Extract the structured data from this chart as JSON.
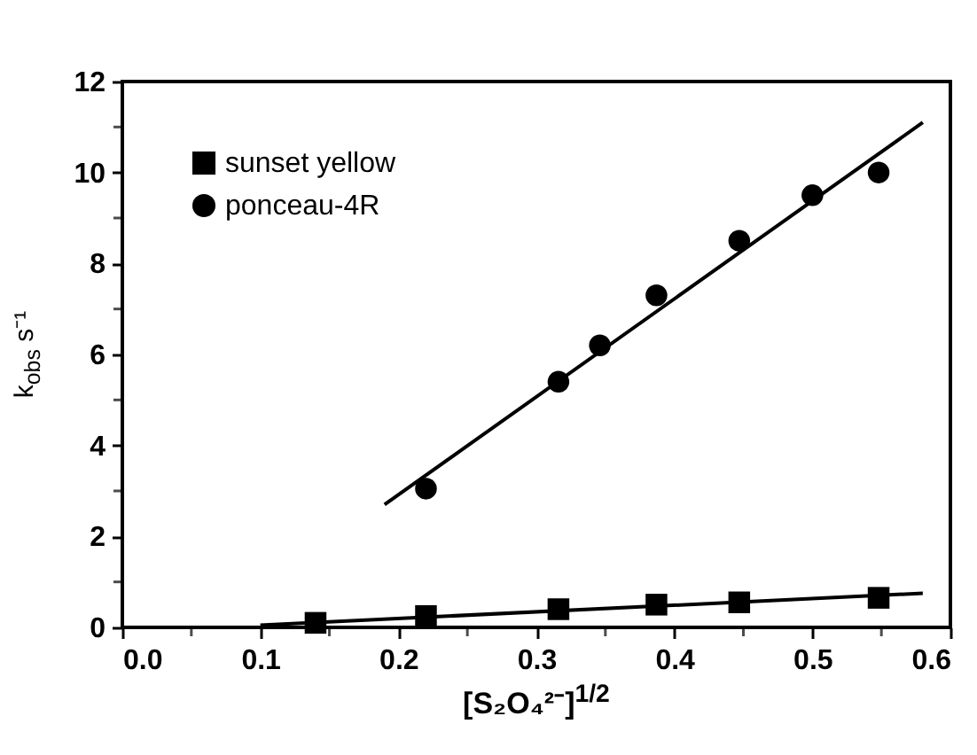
{
  "chart_data": {
    "type": "scatter",
    "xlabel": "[S₂O₄²⁻]$^{1/2}$",
    "ylabel": "k$_{obs}$ s⁻¹",
    "xlim": [
      0,
      0.6
    ],
    "ylim": [
      0,
      12
    ],
    "xticks": [
      {
        "value": 0,
        "label": "0.0"
      },
      {
        "value": 0.05,
        "label": null
      },
      0.1,
      {
        "value": 0.15,
        "label": null
      },
      0.2,
      {
        "value": 0.25,
        "label": null
      },
      0.3,
      {
        "value": 0.35,
        "label": null
      },
      0.4,
      {
        "value": 0.45,
        "label": null
      },
      0.5,
      {
        "value": 0.55,
        "label": null
      },
      0.6
    ],
    "yticks": [
      0,
      {
        "value": 1,
        "label": null
      },
      2,
      {
        "value": 3,
        "label": null
      },
      4,
      {
        "value": 5,
        "label": null
      },
      6,
      {
        "value": 7,
        "label": null
      },
      8,
      {
        "value": 9,
        "label": null
      },
      10,
      {
        "value": 11,
        "label": null
      },
      12
    ],
    "legend": "top left",
    "grid": false,
    "series": [
      {
        "name": "sunset yellow",
        "marker": "square",
        "color": "#000000",
        "x": [
          0.14,
          0.22,
          0.316,
          0.387,
          0.447,
          0.548
        ],
        "values": [
          0.1,
          0.25,
          0.4,
          0.5,
          0.55,
          0.65
        ]
      },
      {
        "name": "ponceau-4R",
        "marker": "circle",
        "color": "#000000",
        "x": [
          0.22,
          0.316,
          0.346,
          0.387,
          0.447,
          0.5,
          0.548
        ],
        "values": [
          3.05,
          5.4,
          6.2,
          7.3,
          8.5,
          9.5,
          10.0
        ]
      },
      {
        "type": "line",
        "color": "#000000",
        "x": [
          0.1,
          0.58
        ],
        "values": [
          0.05,
          0.75
        ]
      },
      {
        "type": "line",
        "color": "#000000",
        "x": [
          0.19,
          0.58
        ],
        "values": [
          2.7,
          11.1
        ]
      }
    ]
  }
}
